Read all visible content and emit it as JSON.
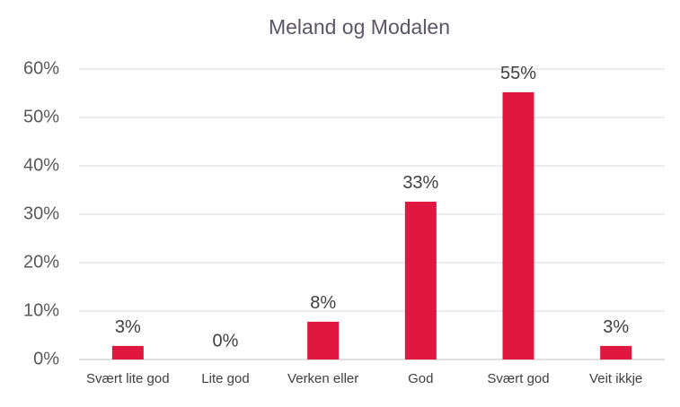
{
  "chart_data": {
    "type": "bar",
    "title": "Meland og Modalen",
    "categories": [
      "Svært lite god",
      "Lite god",
      "Verken eller",
      "God",
      "Svært god",
      "Veit ikkje"
    ],
    "values": [
      2.8,
      0,
      7.8,
      32.6,
      55.2,
      2.8
    ],
    "value_labels": [
      "3%",
      "0%",
      "8%",
      "33%",
      "55%",
      "3%"
    ],
    "color": "#e0173f",
    "ylim": [
      0,
      60
    ],
    "yticks": [
      {
        "value": 0,
        "label": "0%"
      },
      {
        "value": 10,
        "label": "10%"
      },
      {
        "value": 20,
        "label": "20%"
      },
      {
        "value": 30,
        "label": "30%"
      },
      {
        "value": 40,
        "label": "40%"
      },
      {
        "value": 50,
        "label": "50%"
      },
      {
        "value": 60,
        "label": "60%"
      }
    ],
    "grid": true
  }
}
